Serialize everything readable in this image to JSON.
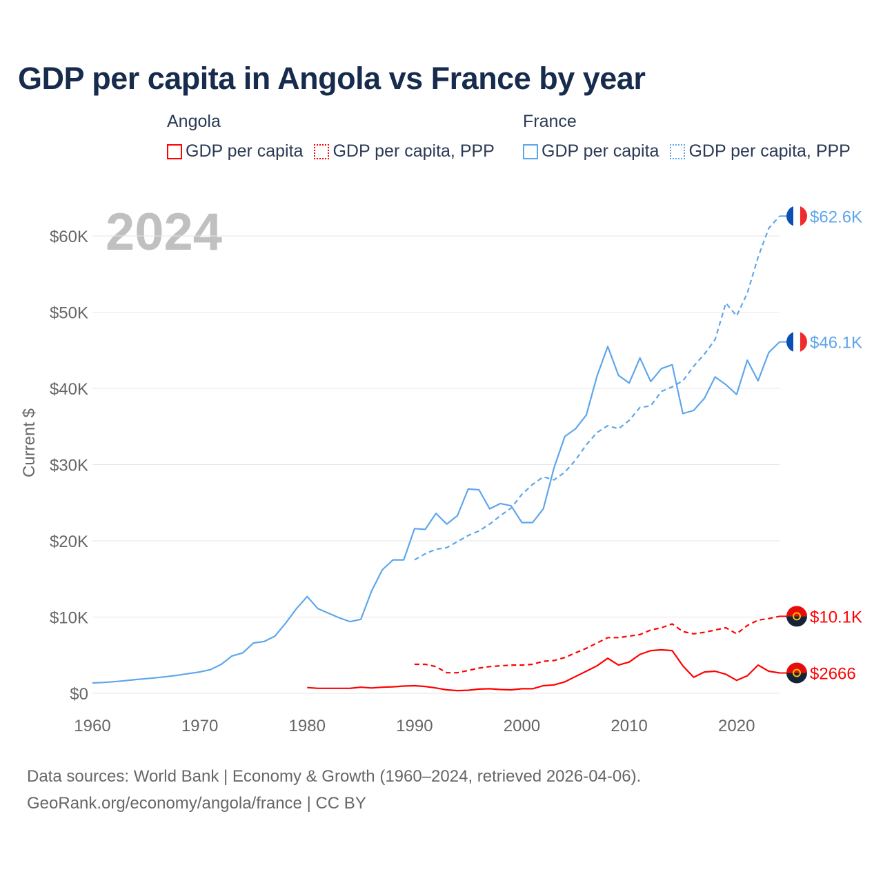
{
  "title": "GDP per capita in Angola vs France by year",
  "legend": [
    {
      "group": "Angola",
      "items": [
        {
          "label": "GDP per capita",
          "color": "#ff0000",
          "style": "solid"
        },
        {
          "label": "GDP per capita, PPP",
          "color": "#ff0000",
          "style": "dotted"
        }
      ]
    },
    {
      "group": "France",
      "items": [
        {
          "label": "GDP per capita",
          "color": "#5ea6eb",
          "style": "solid"
        },
        {
          "label": "GDP per capita, PPP",
          "color": "#5ea6eb",
          "style": "dotted"
        }
      ]
    }
  ],
  "footer": {
    "line1": "Data sources: World Bank | Economy & Growth (1960–2024, retrieved 2026-04-06).",
    "line2": "GeoRank.org/economy/angola/france | CC BY"
  },
  "chart_data": {
    "type": "line",
    "title": "GDP per capita in Angola vs France by year",
    "year_watermark": "2024",
    "xlabel": "",
    "ylabel": "Current $",
    "xlim": [
      1960,
      2024
    ],
    "ylim": [
      0,
      65
    ],
    "x_ticks": [
      1960,
      1970,
      1980,
      1990,
      2000,
      2010,
      2020
    ],
    "x_tick_labels": [
      "1960",
      "1970",
      "1980",
      "1990",
      "2000",
      "2010",
      "2020"
    ],
    "y_ticks": [
      0,
      10,
      20,
      30,
      40,
      50,
      60
    ],
    "y_tick_labels": [
      "$0",
      "$10K",
      "$20K",
      "$30K",
      "$40K",
      "$50K",
      "$60K"
    ],
    "grid": true,
    "units": "thousands of current US$",
    "series": [
      {
        "name": "France GDP per capita",
        "country": "France",
        "color": "#5ea6eb",
        "dashed": false,
        "start": 1960,
        "end_label": "$46.1K",
        "values": [
          1.36,
          1.42,
          1.52,
          1.65,
          1.8,
          1.92,
          2.05,
          2.2,
          2.38,
          2.6,
          2.8,
          3.1,
          3.8,
          4.9,
          5.3,
          6.6,
          6.8,
          7.5,
          9.2,
          11.1,
          12.7,
          11.1,
          10.5,
          9.9,
          9.4,
          9.7,
          13.4,
          16.2,
          17.5,
          17.5,
          21.6,
          21.5,
          23.6,
          22.2,
          23.3,
          26.8,
          26.7,
          24.2,
          24.9,
          24.6,
          22.4,
          22.4,
          24.2,
          29.6,
          33.7,
          34.7,
          36.5,
          41.6,
          45.5,
          41.7,
          40.7,
          44.0,
          40.9,
          42.6,
          43.1,
          36.7,
          37.1,
          38.7,
          41.5,
          40.5,
          39.2,
          43.7,
          41.0,
          44.7,
          46.1
        ]
      },
      {
        "name": "France GDP per capita, PPP",
        "country": "France",
        "color": "#5ea6eb",
        "dashed": true,
        "start": 1990,
        "end_label": "$62.6K",
        "values": [
          17.5,
          18.3,
          18.9,
          19.1,
          19.9,
          20.7,
          21.3,
          22.2,
          23.3,
          24.3,
          26.1,
          27.4,
          28.4,
          28.0,
          29.0,
          30.6,
          32.6,
          34.2,
          35.1,
          34.7,
          35.8,
          37.5,
          37.7,
          39.6,
          40.2,
          41.0,
          42.9,
          44.5,
          46.4,
          51.2,
          49.5,
          52.5,
          57.2,
          61.0,
          62.6
        ]
      },
      {
        "name": "Angola GDP per capita, PPP",
        "country": "Angola",
        "color": "#ff0000",
        "dashed": true,
        "start": 1990,
        "end_label": "$10.1K",
        "values": [
          3.8,
          3.8,
          3.5,
          2.7,
          2.7,
          3.0,
          3.3,
          3.5,
          3.6,
          3.7,
          3.7,
          3.8,
          4.2,
          4.3,
          4.7,
          5.3,
          5.9,
          6.6,
          7.3,
          7.3,
          7.5,
          7.7,
          8.3,
          8.6,
          9.1,
          8.1,
          7.8,
          8.0,
          8.3,
          8.6,
          7.8,
          8.9,
          9.6,
          9.8,
          10.1
        ]
      },
      {
        "name": "Angola GDP per capita",
        "country": "Angola",
        "color": "#ff0000",
        "dashed": false,
        "start": 1980,
        "end_label": "$2666",
        "values": [
          0.75,
          0.65,
          0.65,
          0.65,
          0.65,
          0.8,
          0.7,
          0.8,
          0.85,
          0.95,
          1.0,
          0.9,
          0.7,
          0.45,
          0.35,
          0.4,
          0.55,
          0.6,
          0.5,
          0.45,
          0.6,
          0.6,
          1.0,
          1.1,
          1.5,
          2.2,
          2.9,
          3.6,
          4.6,
          3.7,
          4.1,
          5.1,
          5.6,
          5.7,
          5.6,
          3.6,
          2.1,
          2.8,
          2.9,
          2.5,
          1.7,
          2.3,
          3.7,
          2.9,
          2.666
        ]
      }
    ]
  }
}
